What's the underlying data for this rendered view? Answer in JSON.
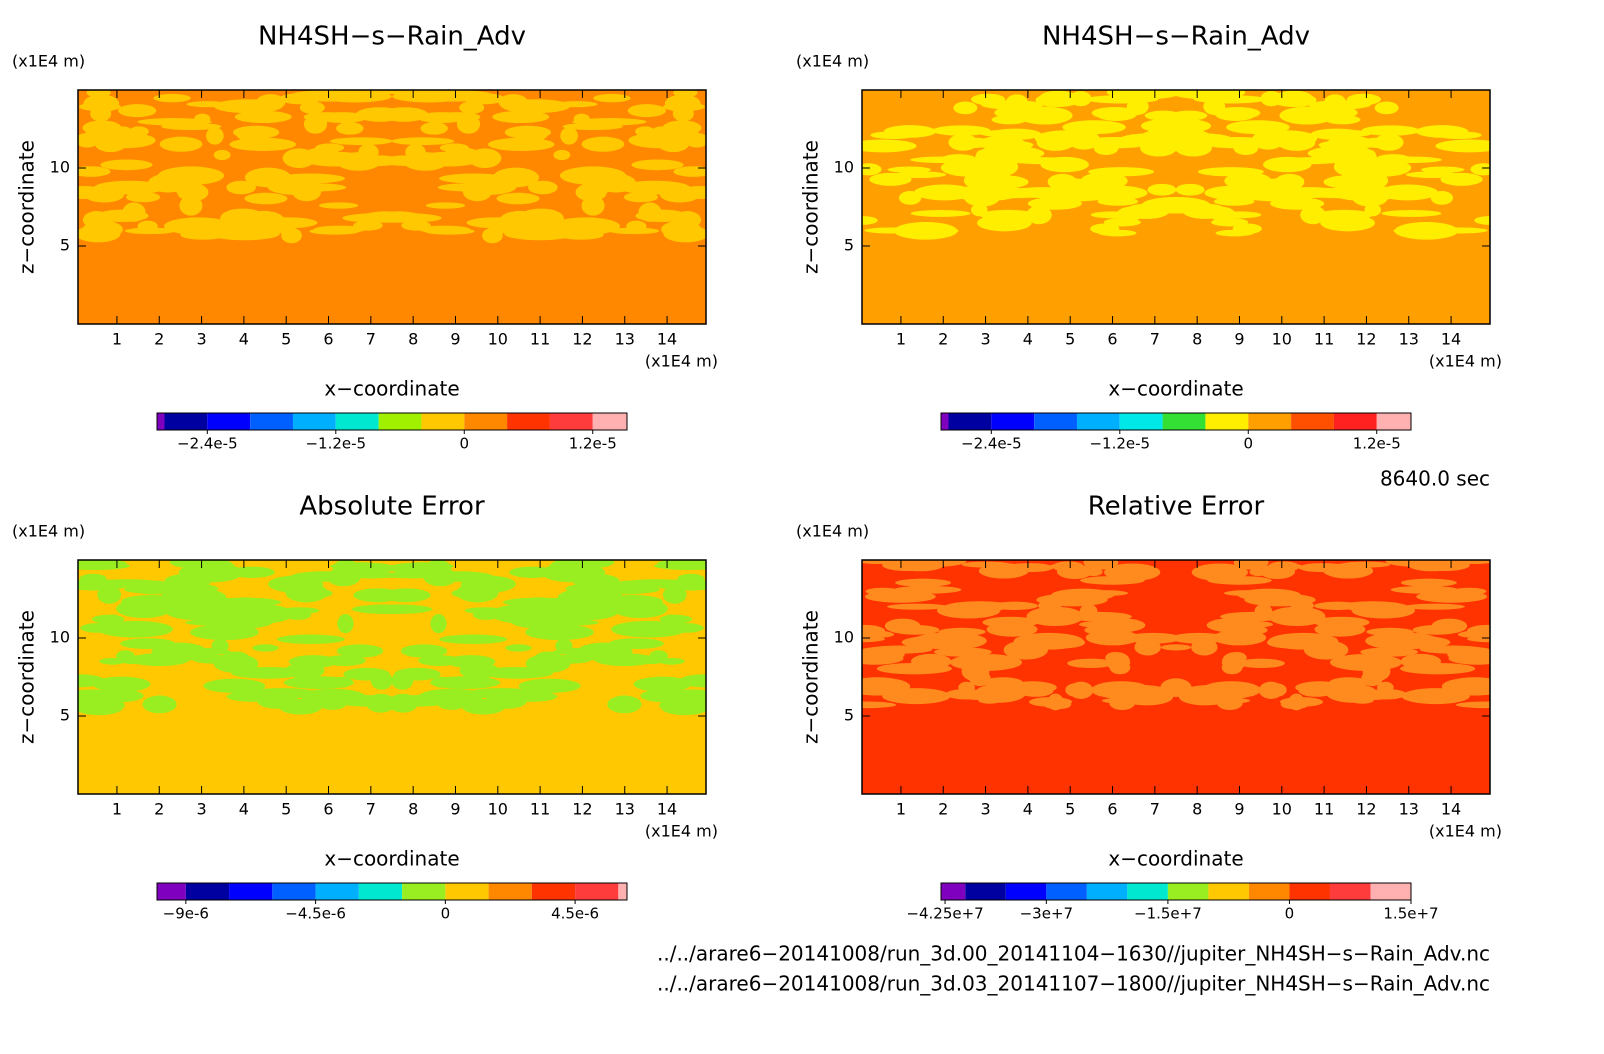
{
  "chart_data": [
    {
      "type": "contour",
      "title": "NH4SH−s−Rain_Adv",
      "y_unit": "(x1E4 m)",
      "x_unit": "(x1E4 m)",
      "xlabel": "x−coordinate",
      "ylabel": "z−coordinate",
      "xlim": [
        0.08,
        14.92
      ],
      "ylim": [
        0,
        15
      ],
      "xticks": [
        1,
        2,
        3,
        4,
        5,
        6,
        7,
        8,
        9,
        10,
        11,
        12,
        13,
        14
      ],
      "yticks": [
        5,
        10
      ],
      "fill_color": "#ff8800",
      "patch_color": "#ffc800",
      "colorbar": {
        "clim": [
          -2.87e-05,
          1.52e-05
        ],
        "boundaries": [
          -2.8e-05,
          -2.4e-05,
          -2e-05,
          -1.6e-05,
          -1.2e-05,
          -8e-06,
          -4e-06,
          0,
          4e-06,
          8e-06,
          1.2e-05
        ],
        "colors": [
          "#7f00bf",
          "#0000a0",
          "#0000ff",
          "#0060ff",
          "#00b0ff",
          "#00e8d0",
          "#a0f000",
          "#ffc800",
          "#ff8800",
          "#ff3300",
          "#ff3c3c",
          "#ffb0b0"
        ],
        "ticks": [
          {
            "value": -2.4e-05,
            "label": "−2.4e-5"
          },
          {
            "value": -1.2e-05,
            "label": "−1.2e-5"
          },
          0,
          {
            "value": 1.2e-05,
            "label": "1.2e-5"
          }
        ]
      }
    },
    {
      "type": "contour",
      "title": "NH4SH−s−Rain_Adv",
      "y_unit": "(x1E4 m)",
      "x_unit": "(x1E4 m)",
      "xlabel": "x−coordinate",
      "ylabel": "z−coordinate",
      "xlim": [
        0.08,
        14.92
      ],
      "ylim": [
        0,
        15
      ],
      "xticks": [
        1,
        2,
        3,
        4,
        5,
        6,
        7,
        8,
        9,
        10,
        11,
        12,
        13,
        14
      ],
      "yticks": [
        5,
        10
      ],
      "fill_color": "#ffa000",
      "patch_color": "#ffee00",
      "colorbar": {
        "clim": [
          -2.87e-05,
          1.52e-05
        ],
        "boundaries": [
          -2.8e-05,
          -2.4e-05,
          -2e-05,
          -1.6e-05,
          -1.2e-05,
          -8e-06,
          -4e-06,
          0,
          4e-06,
          8e-06,
          1.2e-05
        ],
        "colors": [
          "#7f00bf",
          "#0000a0",
          "#0000ff",
          "#0060ff",
          "#00b0ff",
          "#00e8e8",
          "#33e033",
          "#ffee00",
          "#ffa000",
          "#ff5000",
          "#ff2020",
          "#ffb0b0"
        ],
        "ticks": [
          {
            "value": -2.4e-05,
            "label": "−2.4e-5"
          },
          {
            "value": -1.2e-05,
            "label": "−1.2e-5"
          },
          0,
          {
            "value": 1.2e-05,
            "label": "1.2e-5"
          }
        ]
      }
    },
    {
      "type": "contour",
      "title": "Absolute Error",
      "y_unit": "(x1E4 m)",
      "x_unit": "(x1E4 m)",
      "xlabel": "x−coordinate",
      "ylabel": "z−coordinate",
      "xlim": [
        0.08,
        14.92
      ],
      "ylim": [
        0,
        15
      ],
      "xticks": [
        1,
        2,
        3,
        4,
        5,
        6,
        7,
        8,
        9,
        10,
        11,
        12,
        13,
        14
      ],
      "yticks": [
        5,
        10
      ],
      "fill_color": "#ffc800",
      "patch_color": "#99ee22",
      "colorbar": {
        "clim": [
          -1e-05,
          6.3e-06
        ],
        "boundaries": [
          -9e-06,
          -7.5e-06,
          -6e-06,
          -4.5e-06,
          -3e-06,
          -1.5e-06,
          0,
          1.5e-06,
          3e-06,
          4.5e-06,
          6e-06
        ],
        "colors": [
          "#7f00bf",
          "#0000a0",
          "#0000ff",
          "#0060ff",
          "#00b0ff",
          "#00e8d0",
          "#99ee22",
          "#ffc800",
          "#ff8800",
          "#ff3300",
          "#ff3c3c",
          "#ffb0b0"
        ],
        "ticks": [
          {
            "value": -9e-06,
            "label": "−9e-6"
          },
          {
            "value": -4.5e-06,
            "label": "−4.5e-6"
          },
          0,
          {
            "value": 4.5e-06,
            "label": "4.5e-6"
          }
        ]
      }
    },
    {
      "type": "contour",
      "title": "Relative Error",
      "y_unit": "(x1E4 m)",
      "x_unit": "(x1E4 m)",
      "xlabel": "x−coordinate",
      "ylabel": "z−coordinate",
      "xlim": [
        0.08,
        14.92
      ],
      "ylim": [
        0,
        15
      ],
      "xticks": [
        1,
        2,
        3,
        4,
        5,
        6,
        7,
        8,
        9,
        10,
        11,
        12,
        13,
        14
      ],
      "yticks": [
        5,
        10
      ],
      "fill_color": "#ff3300",
      "patch_color": "#ff8a1e",
      "colorbar": {
        "clim": [
          -43000000.0,
          15000000.0
        ],
        "boundaries": [
          -40000000.0,
          -35000000.0,
          -30000000.0,
          -25000000.0,
          -20000000.0,
          -15000000.0,
          -10000000.0,
          -5000000.0,
          0,
          5000000.0,
          10000000.0
        ],
        "colors": [
          "#7f00bf",
          "#0000a0",
          "#0000ff",
          "#0060ff",
          "#00b0ff",
          "#00e8d0",
          "#99ee22",
          "#ffc800",
          "#ff8800",
          "#ff3300",
          "#ff3c3c",
          "#ffb0b0"
        ],
        "ticks": [
          {
            "value": -42500000.0,
            "label": "−4.25e+7"
          },
          {
            "value": -30000000.0,
            "label": "−3e+7"
          },
          {
            "value": -15000000.0,
            "label": "−1.5e+7"
          },
          0,
          {
            "value": 15000000.0,
            "label": "1.5e+7"
          }
        ]
      }
    }
  ],
  "time_label": "8640.0 sec",
  "files": [
    "../../arare6−20141008/run_3d.00_20141104−1630//jupiter_NH4SH−s−Rain_Adv.nc",
    "../../arare6−20141008/run_3d.03_20141107−1800//jupiter_NH4SH−s−Rain_Adv.nc"
  ]
}
